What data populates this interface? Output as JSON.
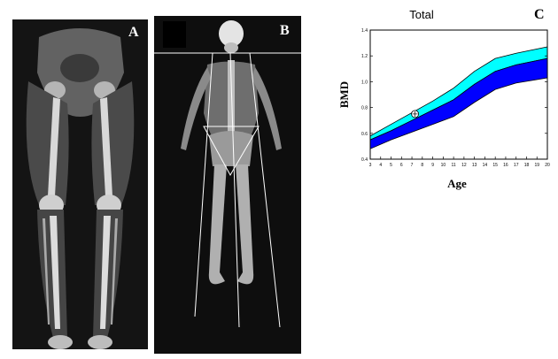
{
  "panels": {
    "a": {
      "label": "A"
    },
    "b": {
      "label": "B"
    },
    "c": {
      "label": "C"
    }
  },
  "colors": {
    "xray_background": "#141414",
    "band_inner": "#00ffff",
    "band_outer": "#0000ff",
    "bone": "#d8d8d8"
  },
  "chart_data": {
    "type": "area",
    "title": "Total",
    "xlabel": "Age",
    "ylabel": "BMD",
    "xlim": [
      3,
      20
    ],
    "ylim": [
      0.4,
      1.4
    ],
    "x_ticks": [
      "3",
      "4",
      "5",
      "6",
      "7",
      "8",
      "9",
      "10",
      "11",
      "12",
      "13",
      "14",
      "15",
      "16",
      "17",
      "18",
      "19",
      "20"
    ],
    "y_ticks": [
      "0.4",
      "0.6",
      "0.8",
      "1.0",
      "1.2",
      "1.4"
    ],
    "x": [
      3,
      5,
      7,
      9,
      11,
      13,
      15,
      17,
      20
    ],
    "series": [
      {
        "values_upper": [
          0.58,
          0.67,
          0.76,
          0.85,
          0.95,
          1.08,
          1.18,
          1.22,
          1.27
        ],
        "values_lower": [
          0.55,
          0.62,
          0.7,
          0.78,
          0.86,
          0.98,
          1.08,
          1.13,
          1.18
        ],
        "color": "#00ffff"
      },
      {
        "values_upper": [
          0.55,
          0.62,
          0.7,
          0.78,
          0.86,
          0.98,
          1.08,
          1.13,
          1.18
        ],
        "values_lower": [
          0.48,
          0.55,
          0.61,
          0.67,
          0.73,
          0.84,
          0.94,
          0.99,
          1.03
        ],
        "color": "#0000ff"
      }
    ],
    "point": {
      "x": 7.3,
      "y": 0.75
    },
    "grid": false
  }
}
